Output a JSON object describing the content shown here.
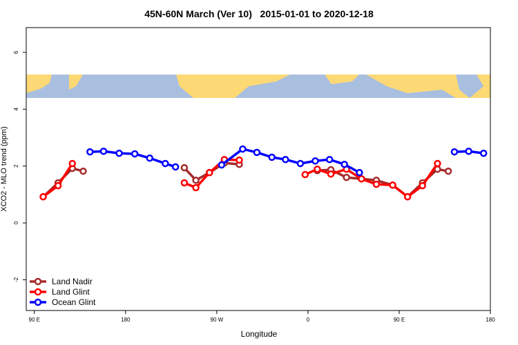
{
  "chart_data": {
    "type": "line",
    "title": "45N-60N March (Ver 10)   2015-01-01 to 2020-12-18",
    "x_label": "Longitude",
    "y_label": "XCO2 - MLO trend (ppm)",
    "xlim": [
      82,
      540
    ],
    "ylim": [
      -3.08,
      6.87
    ],
    "xticks": [
      {
        "value": 90,
        "label": "90 E"
      },
      180,
      {
        "value": 270,
        "label": "90 W"
      },
      {
        "value": 360,
        "label": "0"
      },
      {
        "value": 450,
        "label": "90 E"
      },
      {
        "value": 540,
        "label": "180"
      }
    ],
    "yticks": [
      -2,
      0,
      2,
      4,
      6
    ],
    "legend": "bottom-left",
    "series": [
      {
        "name": "Land Nadir",
        "color": "#a52a2a",
        "x": [
          98.7,
          113.4,
          127.5,
          138.2,
          null,
          238,
          249.4,
          262.8,
          277.5,
          292.2,
          null,
          369.2,
          382.6,
          398,
          412.8,
          427.5,
          443.6,
          458.3,
          473,
          487.8,
          498.5
        ],
        "values": [
          0.92,
          1.41,
          1.92,
          1.82,
          null,
          1.94,
          1.5,
          1.77,
          2.11,
          2.06,
          null,
          1.84,
          1.87,
          1.6,
          1.55,
          1.5,
          1.33,
          0.92,
          1.41,
          1.89,
          1.82
        ]
      },
      {
        "name": "Land Glint",
        "color": "#ff0000",
        "x": [
          98.7,
          113.4,
          127.5,
          null,
          238,
          249.4,
          262.8,
          277.5,
          292.2,
          null,
          357.2,
          369.2,
          382.6,
          398,
          412.8,
          427.5,
          443.6,
          458.3,
          473,
          487.8
        ],
        "values": [
          0.92,
          1.31,
          2.09,
          null,
          1.41,
          1.24,
          1.77,
          2.23,
          2.21,
          null,
          1.7,
          1.89,
          1.72,
          1.89,
          1.55,
          1.36,
          1.33,
          0.92,
          1.31,
          2.09
        ]
      },
      {
        "name": "Ocean Glint",
        "color": "#0000ff",
        "x": [
          144.9,
          158.3,
          173.7,
          189.1,
          203.8,
          219.2,
          229.3,
          null,
          274.8,
          295.6,
          309.6,
          324.4,
          337.8,
          352.5,
          367.2,
          381.3,
          396,
          410.8,
          null,
          504.5,
          518.6,
          533.3
        ],
        "values": [
          2.5,
          2.52,
          2.45,
          2.43,
          2.28,
          2.09,
          1.97,
          null,
          2.04,
          2.6,
          2.48,
          2.31,
          2.23,
          2.09,
          2.18,
          2.23,
          2.06,
          1.77,
          null,
          2.5,
          2.52,
          2.45
        ]
      }
    ]
  }
}
